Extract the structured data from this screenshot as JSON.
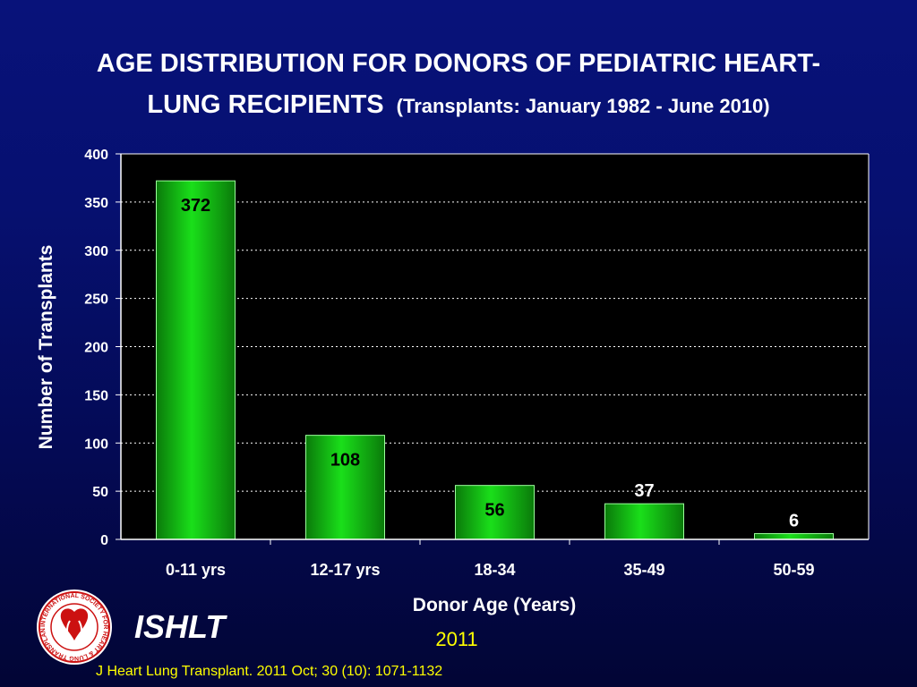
{
  "title": {
    "main_line1": "AGE DISTRIBUTION FOR DONORS OF PEDIATRIC HEART-",
    "main_line2": "LUNG RECIPIENTS",
    "subtitle": "(Transplants: January 1982 - June 2010)"
  },
  "footer": {
    "org": "ISHLT",
    "year": "2011",
    "citation": "J Heart Lung Transplant. 2011 Oct; 30 (10): 1071-1132",
    "logo_text": "INTERNATIONAL SOCIETY FOR HEART & LUNG TRANSPLANTATION"
  },
  "colors": {
    "background": "#061070",
    "plot_background": "#000000",
    "bar_fill": "#1adf1a",
    "bar_dark": "#0a7a0a",
    "data_label": "#000000",
    "footer_text": "#ffff00",
    "logo_red": "#cc1111"
  },
  "chart_data": {
    "type": "bar",
    "title": "AGE DISTRIBUTION FOR DONORS OF PEDIATRIC HEART-LUNG RECIPIENTS",
    "subtitle": "(Transplants: January 1982 - June 2010)",
    "xlabel": "Donor Age (Years)",
    "ylabel": "Number of Transplants",
    "categories": [
      "0-11 yrs",
      "12-17 yrs",
      "18-34",
      "35-49",
      "50-59"
    ],
    "values": [
      372,
      108,
      56,
      37,
      6
    ],
    "data_labels": [
      "372",
      "108",
      "56",
      "37",
      "6"
    ],
    "ylim": [
      0,
      400
    ],
    "yticks": [
      0,
      50,
      100,
      150,
      200,
      250,
      300,
      350,
      400
    ],
    "grid": "horizontal dotted",
    "legend": "none"
  }
}
